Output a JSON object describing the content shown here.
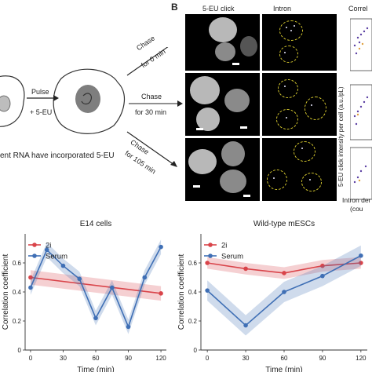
{
  "panelB": {
    "letter": "B",
    "col1": "5-EU click",
    "col2": "Intron",
    "col3": "Correl",
    "ylabel": "5-EU click intensity per cell (a.u./pL)",
    "xlabel_line1": "Intron der",
    "xlabel_line2": "(cou"
  },
  "panelA": {
    "pulse": "Pulse",
    "pulse_sub": "+ 5-EU",
    "chase1": "Chase",
    "chase1_sub": "for 0 min",
    "chase2": "Chase",
    "chase2_sub": "for 30 min",
    "chase3": "Chase",
    "chase3_sub": "for 105 min",
    "caption": "ent RNA have incorporated 5-EU"
  },
  "chart_data": [
    {
      "type": "line",
      "title": "E14 cells",
      "xlabel": "Time (min)",
      "ylabel": "Correlation coefficient",
      "x_ticks": [
        0,
        30,
        60,
        90,
        120
      ],
      "y_ticks": [
        0,
        0.2,
        0.4,
        0.6
      ],
      "xlim": [
        -5,
        125
      ],
      "ylim": [
        0,
        0.8
      ],
      "legend": "top-left",
      "series": [
        {
          "name": "2i",
          "color": "#d9444a",
          "x": [
            0,
            120
          ],
          "values": [
            0.5,
            0.39
          ],
          "band": 0.05
        },
        {
          "name": "Serum",
          "color": "#3f6fb5",
          "x": [
            0,
            15,
            30,
            45,
            60,
            75,
            90,
            105,
            120
          ],
          "values": [
            0.43,
            0.69,
            0.58,
            0.49,
            0.22,
            0.43,
            0.16,
            0.5,
            0.71
          ],
          "band": 0.05
        }
      ]
    },
    {
      "type": "line",
      "title": "Wild-type mESCs",
      "xlabel": "Time (min)",
      "ylabel": "Correlation coefficient",
      "x_ticks": [
        0,
        30,
        60,
        90,
        120
      ],
      "y_ticks": [
        0,
        0.2,
        0.4,
        0.6
      ],
      "xlim": [
        -5,
        125
      ],
      "ylim": [
        0,
        0.8
      ],
      "legend": "top-left",
      "series": [
        {
          "name": "2i",
          "color": "#d9444a",
          "x": [
            0,
            30,
            60,
            90,
            120
          ],
          "values": [
            0.6,
            0.56,
            0.53,
            0.58,
            0.6
          ],
          "band": 0.04
        },
        {
          "name": "Serum",
          "color": "#3f6fb5",
          "x": [
            0,
            30,
            60,
            90,
            120
          ],
          "values": [
            0.41,
            0.17,
            0.4,
            0.51,
            0.65
          ],
          "band": 0.07
        }
      ]
    }
  ]
}
